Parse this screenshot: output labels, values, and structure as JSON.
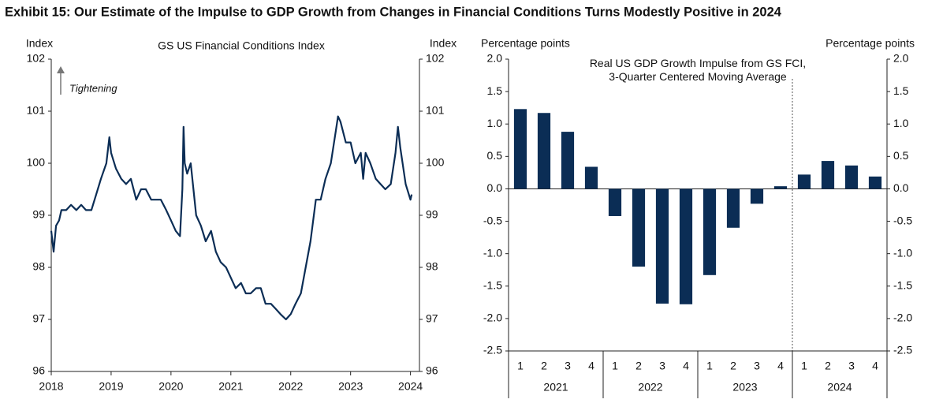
{
  "title": "Exhibit 15: Our Estimate of the Impulse to GDP Growth from Changes in Financial Conditions Turns Modestly Positive in 2024",
  "chart_data": [
    {
      "type": "line",
      "title": "GS US Financial Conditions Index",
      "ylabel": "Index",
      "y2label": "Index",
      "annotation": "Tightening",
      "color": "#0b2d55",
      "x": [
        2018.0,
        2018.04,
        2018.08,
        2018.13,
        2018.17,
        2018.25,
        2018.33,
        2018.42,
        2018.5,
        2018.58,
        2018.67,
        2018.75,
        2018.83,
        2018.92,
        2018.97,
        2019.0,
        2019.08,
        2019.17,
        2019.25,
        2019.33,
        2019.42,
        2019.5,
        2019.58,
        2019.67,
        2019.75,
        2019.83,
        2019.92,
        2020.0,
        2020.08,
        2020.15,
        2020.19,
        2020.21,
        2020.23,
        2020.27,
        2020.33,
        2020.42,
        2020.5,
        2020.58,
        2020.67,
        2020.75,
        2020.83,
        2020.92,
        2021.0,
        2021.08,
        2021.17,
        2021.25,
        2021.33,
        2021.42,
        2021.5,
        2021.58,
        2021.67,
        2021.75,
        2021.83,
        2021.92,
        2022.0,
        2022.08,
        2022.17,
        2022.25,
        2022.33,
        2022.42,
        2022.5,
        2022.58,
        2022.67,
        2022.75,
        2022.79,
        2022.83,
        2022.92,
        2023.0,
        2023.08,
        2023.17,
        2023.21,
        2023.25,
        2023.33,
        2023.42,
        2023.5,
        2023.58,
        2023.67,
        2023.75,
        2023.79,
        2023.83,
        2023.92,
        2024.0,
        2024.02
      ],
      "values": [
        98.7,
        98.3,
        98.8,
        98.9,
        99.1,
        99.1,
        99.2,
        99.1,
        99.2,
        99.1,
        99.1,
        99.4,
        99.7,
        100.0,
        100.5,
        100.2,
        99.9,
        99.7,
        99.6,
        99.7,
        99.3,
        99.5,
        99.5,
        99.3,
        99.3,
        99.3,
        99.1,
        98.9,
        98.7,
        98.6,
        99.5,
        100.7,
        100.0,
        99.8,
        100.0,
        99.0,
        98.8,
        98.5,
        98.7,
        98.3,
        98.1,
        98.0,
        97.8,
        97.6,
        97.7,
        97.5,
        97.5,
        97.6,
        97.6,
        97.3,
        97.3,
        97.2,
        97.1,
        97.0,
        97.1,
        97.3,
        97.5,
        98.0,
        98.5,
        99.3,
        99.3,
        99.7,
        100.0,
        100.6,
        100.9,
        100.8,
        100.4,
        100.4,
        100.0,
        100.2,
        99.7,
        100.2,
        100.0,
        99.7,
        99.6,
        99.5,
        99.6,
        100.2,
        100.7,
        100.3,
        99.6,
        99.3,
        99.4
      ],
      "xlim": [
        2018,
        2024.15
      ],
      "xticks": [
        2018,
        2019,
        2020,
        2021,
        2022,
        2023,
        2024
      ],
      "ylim": [
        96,
        102
      ],
      "yticks": [
        96,
        97,
        98,
        99,
        100,
        101,
        102
      ],
      "y2lim": [
        96,
        102
      ],
      "y2ticks": [
        96,
        97,
        98,
        99,
        100,
        101,
        102
      ]
    },
    {
      "type": "bar",
      "title": "Real US GDP Growth Impulse from GS FCI,\n3-Quarter Centered Moving Average",
      "ylabel": "Percentage points",
      "y2label": "Percentage points",
      "color": "#0b2d55",
      "categories": [
        "1",
        "2",
        "3",
        "4",
        "1",
        "2",
        "3",
        "4",
        "1",
        "2",
        "3",
        "4",
        "1",
        "2",
        "3",
        "4"
      ],
      "groups": [
        "2021",
        "2022",
        "2023",
        "2024"
      ],
      "values": [
        1.23,
        1.17,
        0.88,
        0.34,
        -0.42,
        -1.2,
        -1.77,
        -1.78,
        -1.33,
        -0.6,
        -0.23,
        0.04,
        0.22,
        0.43,
        0.36,
        0.19
      ],
      "ylim": [
        -2.5,
        2.0
      ],
      "yticks": [
        -2.5,
        {
          "value": -2,
          "label": "-2.0"
        },
        -1.5,
        {
          "value": -1,
          "label": "-1.0"
        },
        -0.5,
        {
          "value": 0,
          "label": "0.0"
        },
        0.5,
        {
          "value": 1,
          "label": "1.0"
        },
        1.5,
        {
          "value": 2,
          "label": "2.0"
        }
      ],
      "y2lim": [
        -2.5,
        2.0
      ],
      "y2ticks": [
        -2.5,
        {
          "value": -2,
          "label": "-2.0"
        },
        -1.5,
        {
          "value": -1,
          "label": "-1.0"
        },
        -0.5,
        {
          "value": 0,
          "label": "0.0"
        },
        0.5,
        {
          "value": 1,
          "label": "1.0"
        },
        1.5,
        {
          "value": 2,
          "label": "2.0"
        }
      ]
    }
  ]
}
